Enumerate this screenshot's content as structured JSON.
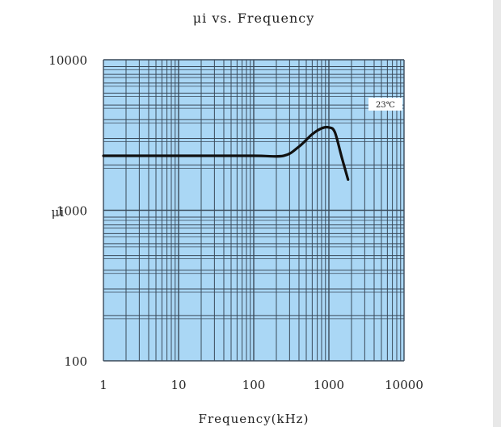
{
  "chart_data": {
    "type": "line",
    "title": "μi  vs. Frequency",
    "xlabel": "Frequency(kHz)",
    "ylabel": "μi",
    "x_scale": "log",
    "y_scale": "log",
    "xlim": [
      1,
      10000
    ],
    "ylim": [
      100,
      10000
    ],
    "x_ticks": [
      {
        "value": 1,
        "label": "1"
      },
      {
        "value": 10,
        "label": "10"
      },
      {
        "value": 100,
        "label": "100"
      },
      {
        "value": 1000,
        "label": "1000"
      },
      {
        "value": 10000,
        "label": "10000"
      }
    ],
    "y_ticks": [
      {
        "value": 100,
        "label": "100"
      },
      {
        "value": 1000,
        "label": "1000"
      },
      {
        "value": 10000,
        "label": "10000"
      }
    ],
    "grid": true,
    "annotation": "23℃",
    "series": [
      {
        "color": "#111111",
        "x": [
          1,
          10,
          100,
          250,
          400,
          600,
          800,
          1000,
          1200,
          1500,
          1800
        ],
        "y": [
          2300,
          2300,
          2300,
          2300,
          2650,
          3200,
          3500,
          3550,
          3300,
          2200,
          1600
        ]
      }
    ],
    "colors": {
      "plot_background": "#aad7f5",
      "grid_line": "#3a4a5a",
      "line": "#111111"
    }
  }
}
